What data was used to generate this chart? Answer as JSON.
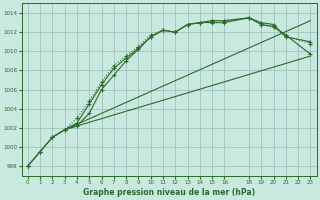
{
  "xlabel": "Graphe pression niveau de la mer (hPa)",
  "background_color": "#c8e8e0",
  "grid_color": "#b0cfc8",
  "line_color": "#2d6a2d",
  "ylim": [
    997,
    1015
  ],
  "xlim": [
    -0.5,
    23.5
  ],
  "yticks": [
    998,
    1000,
    1002,
    1004,
    1006,
    1008,
    1010,
    1012,
    1014
  ],
  "xticks": [
    0,
    1,
    2,
    3,
    4,
    5,
    6,
    7,
    8,
    9,
    10,
    11,
    12,
    13,
    14,
    15,
    16,
    18,
    19,
    20,
    21,
    22,
    23
  ],
  "series1_x": [
    0,
    1,
    2,
    3,
    4,
    5,
    6,
    7,
    8,
    9,
    10,
    11,
    12,
    13,
    14,
    15,
    16,
    18,
    19,
    20,
    21,
    23
  ],
  "series1_y": [
    998.0,
    999.5,
    1001.0,
    1001.8,
    1002.2,
    1003.5,
    1006.0,
    1007.5,
    1009.0,
    1010.2,
    1011.5,
    1012.2,
    1012.0,
    1012.8,
    1013.0,
    1013.0,
    1013.0,
    1013.5,
    1013.0,
    1012.8,
    1011.5,
    1011.0
  ],
  "series2_x": [
    0,
    1,
    2,
    3,
    4,
    5,
    6,
    7,
    8,
    9,
    10,
    11,
    12,
    13,
    14,
    15,
    16,
    18,
    19,
    20,
    21,
    23
  ],
  "series2_y": [
    998.0,
    999.5,
    1001.0,
    1001.8,
    1002.5,
    1004.5,
    1006.5,
    1008.2,
    1009.3,
    1010.3,
    1011.5,
    1012.2,
    1012.0,
    1012.8,
    1013.0,
    1013.2,
    1013.2,
    1013.5,
    1012.8,
    1012.6,
    1011.7,
    1009.7
  ],
  "series3_x": [
    3,
    23
  ],
  "series3_y": [
    1001.8,
    1009.5
  ],
  "series4_x": [
    3,
    23
  ],
  "series4_y": [
    1001.8,
    1013.2
  ],
  "dotted_x": [
    0,
    1,
    2,
    3,
    4,
    5,
    6,
    7,
    8,
    9,
    10,
    11,
    12,
    13,
    14,
    15,
    16,
    18,
    19,
    20,
    21,
    23
  ],
  "dotted_y": [
    998.0,
    999.5,
    1001.0,
    1001.8,
    1003.0,
    1004.8,
    1006.8,
    1008.5,
    1009.5,
    1010.5,
    1011.7,
    1012.2,
    1012.0,
    1012.8,
    1013.0,
    1013.2,
    1013.2,
    1013.5,
    1012.8,
    1012.5,
    1011.6,
    1010.8
  ]
}
